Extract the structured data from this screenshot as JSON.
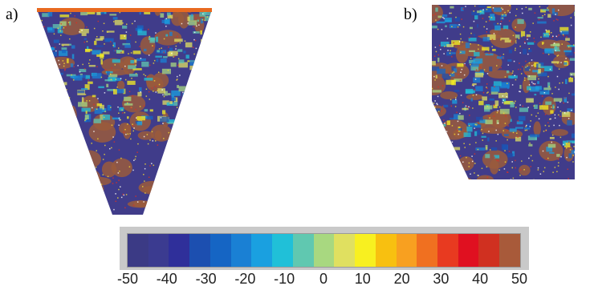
{
  "panels": [
    {
      "label": "a)",
      "shape": "inverted-trapezoid",
      "dominant_color": "#3f3d8f"
    },
    {
      "label": "b)",
      "shape": "trapezoid",
      "dominant_color": "#3f3d8f"
    }
  ],
  "colorbar": {
    "tick_labels": [
      "-50",
      "-40",
      "-30",
      "-20",
      "-10",
      "0",
      "10",
      "20",
      "30",
      "40",
      "50"
    ],
    "min": -50,
    "max": 50,
    "colors": [
      "#3b3a85",
      "#3b3b90",
      "#2f2f9a",
      "#1c4fb0",
      "#1565c4",
      "#1a80d4",
      "#1aa0e0",
      "#20c0d8",
      "#60c8b0",
      "#a8d880",
      "#e0e060",
      "#f8f020",
      "#f8c010",
      "#f8a020",
      "#f07020",
      "#e83a20",
      "#e01020",
      "#d03020",
      "#a85a3a"
    ]
  }
}
